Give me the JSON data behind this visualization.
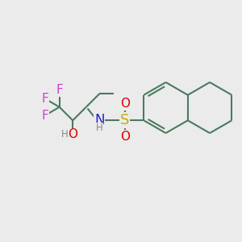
{
  "bg_color": "#ebebeb",
  "bond_color": "#4a7a60",
  "bond_lw": 1.5,
  "F_color": "#cc44cc",
  "O_color": "#dd0000",
  "N_color": "#2222cc",
  "S_color": "#ccaa00",
  "H_color": "#888888",
  "label_fs": 10.5,
  "small_fs": 8.5,
  "fig_w": 3.0,
  "fig_h": 3.0,
  "dpi": 100,
  "xlim": [
    0,
    10
  ],
  "ylim": [
    0,
    10
  ]
}
